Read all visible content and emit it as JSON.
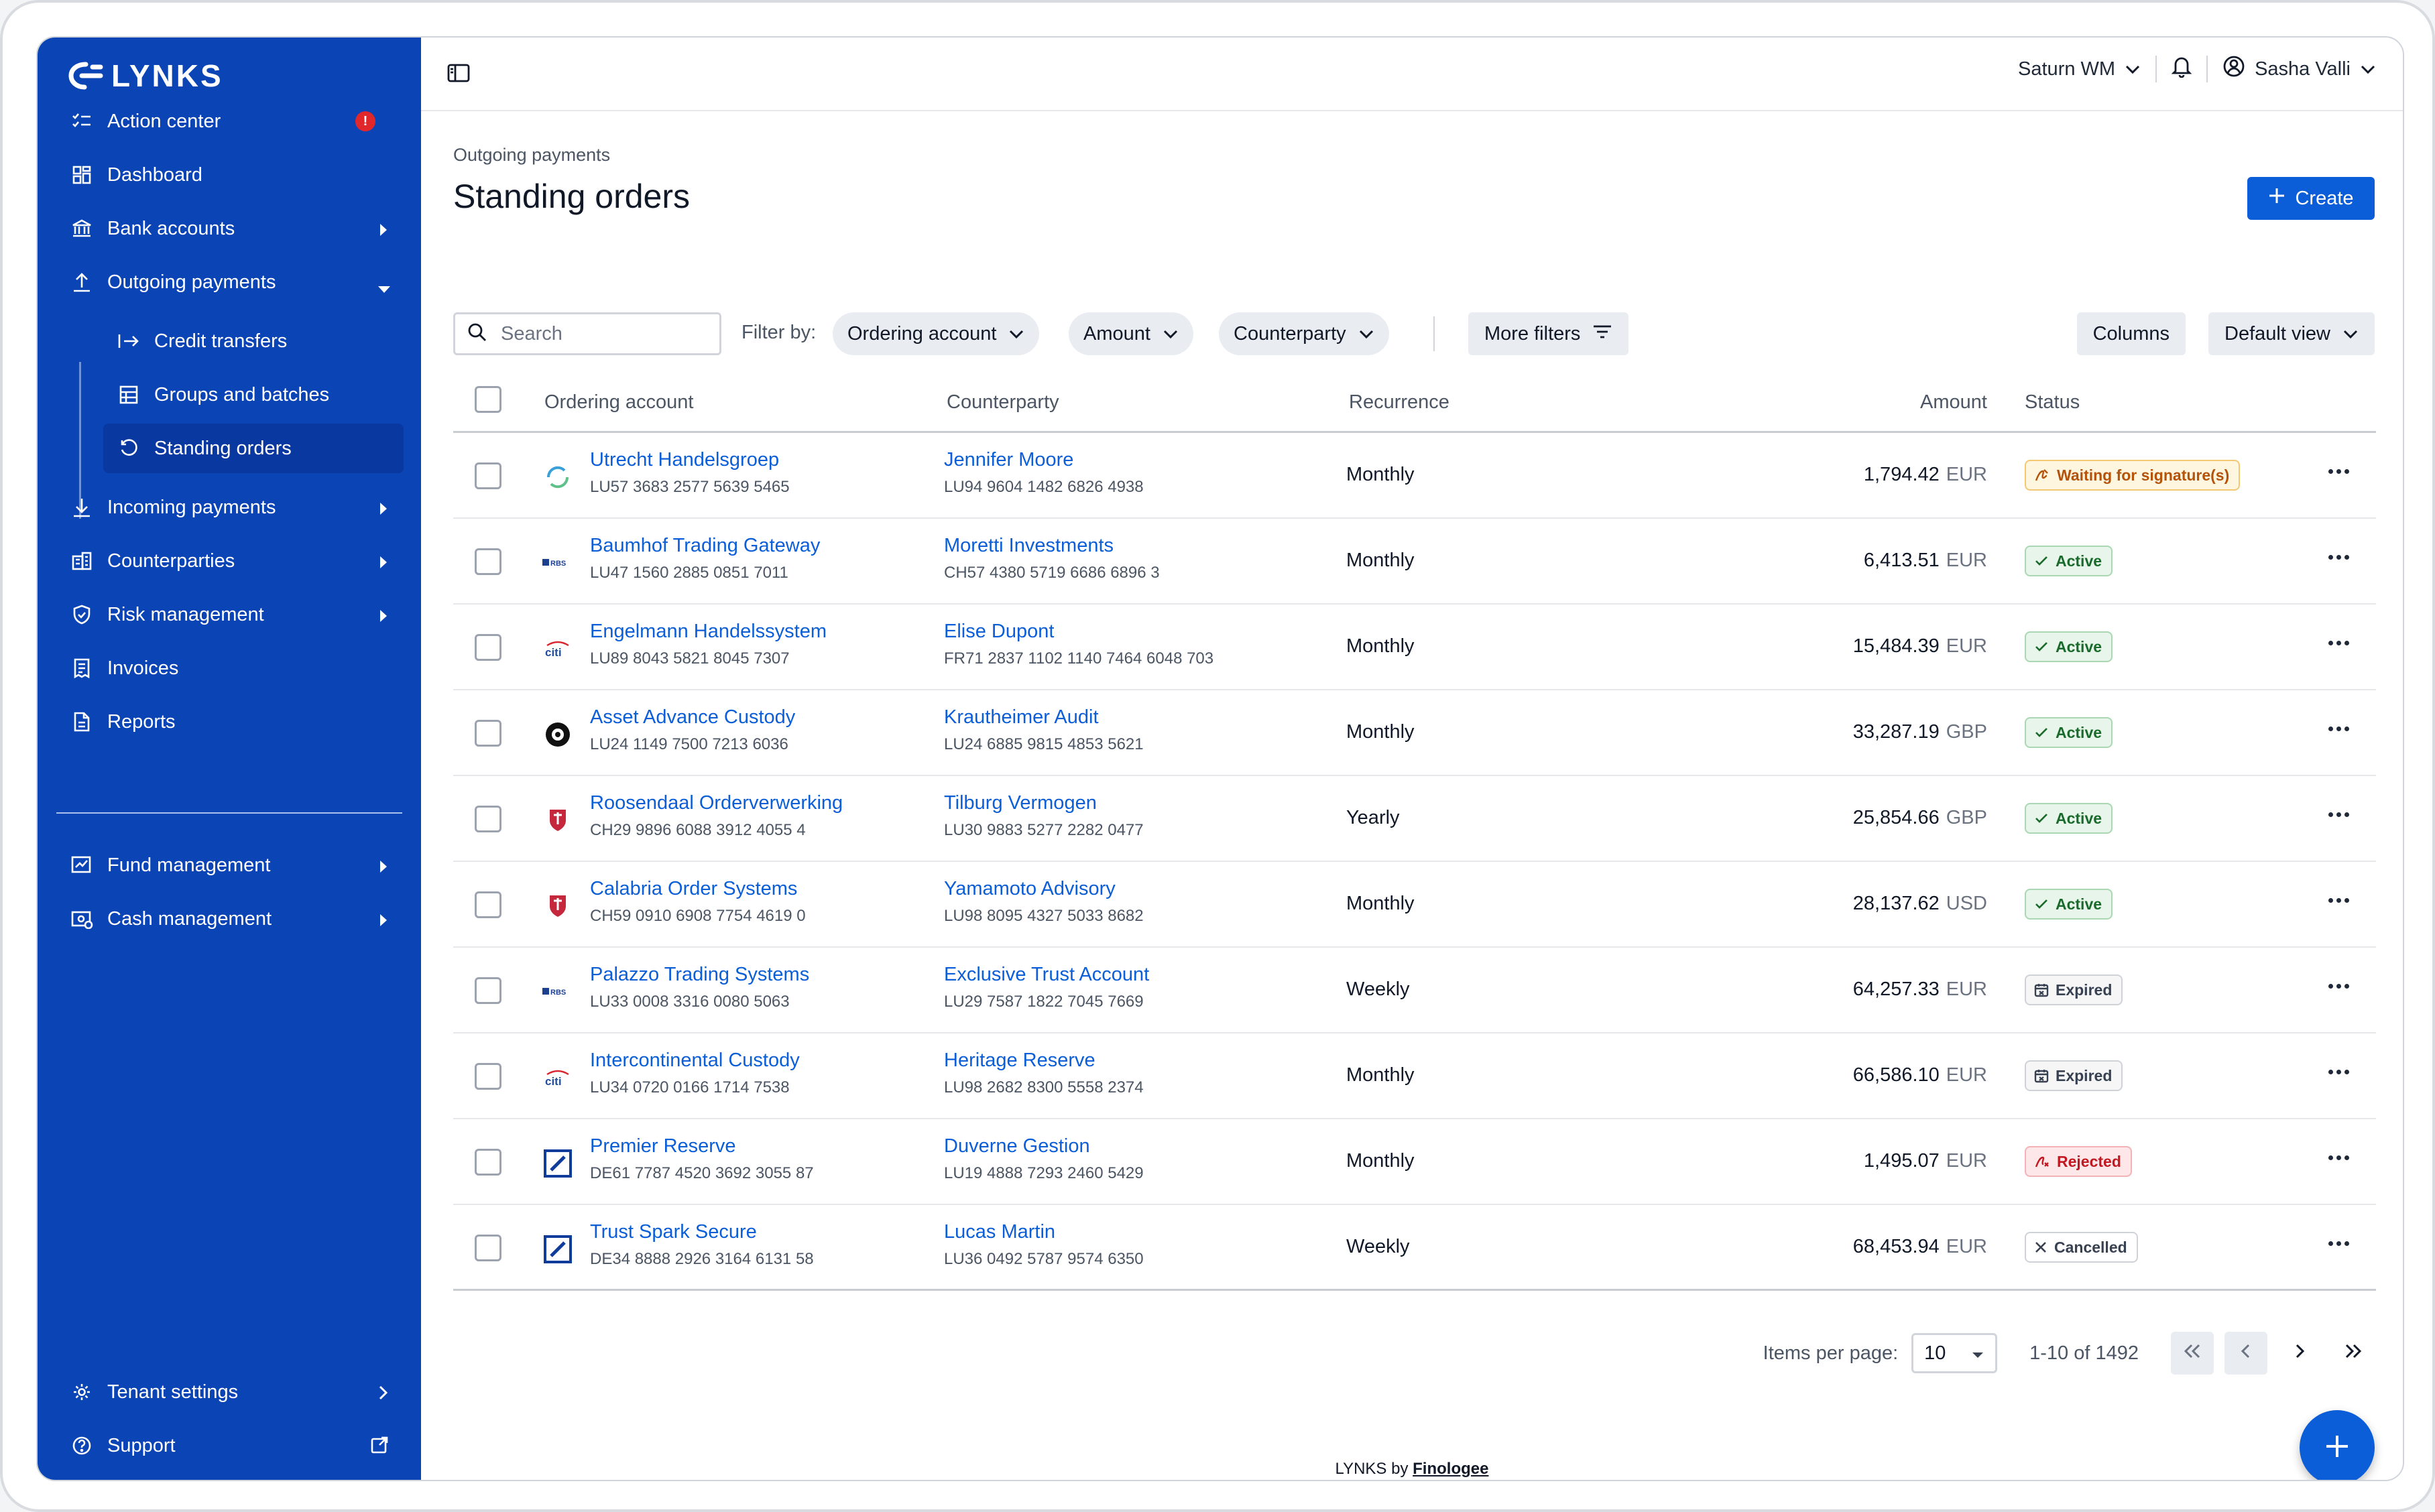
{
  "app": {
    "logo_text": "LYNKS",
    "accent": "#0b44b5",
    "primary": "#0b5ed7"
  },
  "sidebar": {
    "items": [
      {
        "label": "Action center",
        "icon": "checklist-icon",
        "badge": "!"
      },
      {
        "label": "Dashboard",
        "icon": "grid-icon"
      },
      {
        "label": "Bank accounts",
        "icon": "bank-icon"
      },
      {
        "label": "Outgoing payments",
        "icon": "upload-icon"
      },
      {
        "label": "Credit transfers",
        "icon": "arrow-right-bar-icon"
      },
      {
        "label": "Groups and batches",
        "icon": "table-icon"
      },
      {
        "label": "Standing orders",
        "icon": "refresh-icon"
      },
      {
        "label": "Incoming payments",
        "icon": "download-icon"
      },
      {
        "label": "Counterparties",
        "icon": "building-icon"
      },
      {
        "label": "Risk management",
        "icon": "shield-icon"
      },
      {
        "label": "Invoices",
        "icon": "receipt-icon"
      },
      {
        "label": "Reports",
        "icon": "document-icon"
      },
      {
        "label": "Fund management",
        "icon": "fund-icon"
      },
      {
        "label": "Cash management",
        "icon": "cash-icon"
      },
      {
        "label": "Tenant settings",
        "icon": "gear-icon"
      },
      {
        "label": "Support",
        "icon": "help-icon"
      }
    ]
  },
  "topbar": {
    "tenant": "Saturn WM",
    "user": "Sasha Valli"
  },
  "page": {
    "breadcrumb": "Outgoing payments",
    "title": "Standing orders",
    "create_label": "Create"
  },
  "toolbar": {
    "search_placeholder": "Search",
    "filter_by": "Filter by:",
    "filters": [
      "Ordering account",
      "Amount",
      "Counterparty"
    ],
    "more_filters": "More filters",
    "columns": "Columns",
    "view": "Default view"
  },
  "table": {
    "headers": {
      "account": "Ordering account",
      "counterparty": "Counterparty",
      "recurrence": "Recurrence",
      "amount": "Amount",
      "status": "Status"
    },
    "rows": [
      {
        "bank": "cycle",
        "account": "Utrecht Handelsgroep",
        "account_iban": "LU57 3683 2577 5639 5465",
        "cp": "Jennifer Moore",
        "cp_iban": "LU94 9604 1482 6826 4938",
        "recurrence": "Monthly",
        "amount": "1,794.42",
        "currency": "EUR",
        "status": "Waiting for signature(s)",
        "status_type": "wait"
      },
      {
        "bank": "rbs",
        "account": "Baumhof Trading Gateway",
        "account_iban": "LU47 1560 2885 0851 7011",
        "cp": "Moretti Investments",
        "cp_iban": "CH57 4380 5719 6686 6896 3",
        "recurrence": "Monthly",
        "amount": "6,413.51",
        "currency": "EUR",
        "status": "Active",
        "status_type": "active"
      },
      {
        "bank": "citi",
        "account": "Engelmann Handelssystem",
        "account_iban": "LU89 8043 5821 8045 7307",
        "cp": "Elise Dupont",
        "cp_iban": "FR71 2837 1102 1140 7464 6048 703",
        "recurrence": "Monthly",
        "amount": "15,484.39",
        "currency": "EUR",
        "status": "Active",
        "status_type": "active"
      },
      {
        "bank": "burst",
        "account": "Asset Advance Custody",
        "account_iban": "LU24 1149 7500 7213 6036",
        "cp": "Krautheimer Audit",
        "cp_iban": "LU24 6885 9815 4853 5621",
        "recurrence": "Monthly",
        "amount": "33,287.19",
        "currency": "GBP",
        "status": "Active",
        "status_type": "active"
      },
      {
        "bank": "crest",
        "account": "Roosendaal Orderverwerking",
        "account_iban": "CH29 9896 6088 3912 4055 4",
        "cp": "Tilburg Vermogen",
        "cp_iban": "LU30 9883 5277 2282 0477",
        "recurrence": "Yearly",
        "amount": "25,854.66",
        "currency": "GBP",
        "status": "Active",
        "status_type": "active"
      },
      {
        "bank": "crest",
        "account": "Calabria Order Systems",
        "account_iban": "CH59 0910 6908 7754 4619 0",
        "cp": "Yamamoto Advisory",
        "cp_iban": "LU98 8095 4327 5033 8682",
        "recurrence": "Monthly",
        "amount": "28,137.62",
        "currency": "USD",
        "status": "Active",
        "status_type": "active"
      },
      {
        "bank": "rbs",
        "account": "Palazzo Trading Systems",
        "account_iban": "LU33 0008 3316 0080 5063",
        "cp": "Exclusive Trust Account",
        "cp_iban": "LU29 7587 1822 7045 7669",
        "recurrence": "Weekly",
        "amount": "64,257.33",
        "currency": "EUR",
        "status": "Expired",
        "status_type": "expired"
      },
      {
        "bank": "citi",
        "account": "Intercontinental Custody",
        "account_iban": "LU34 0720 0166 1714 7538",
        "cp": "Heritage Reserve",
        "cp_iban": "LU98 2682 8300 5558 2374",
        "recurrence": "Monthly",
        "amount": "66,586.10",
        "currency": "EUR",
        "status": "Expired",
        "status_type": "expired"
      },
      {
        "bank": "db",
        "account": "Premier Reserve",
        "account_iban": "DE61 7787 4520 3692 3055 87",
        "cp": "Duverne Gestion",
        "cp_iban": "LU19 4888 7293 2460 5429",
        "recurrence": "Monthly",
        "amount": "1,495.07",
        "currency": "EUR",
        "status": "Rejected",
        "status_type": "rejected"
      },
      {
        "bank": "db",
        "account": "Trust Spark Secure",
        "account_iban": "DE34 8888 2926 3164 6131 58",
        "cp": "Lucas Martin",
        "cp_iban": "LU36 0492 5787 9574 6350",
        "recurrence": "Weekly",
        "amount": "68,453.94",
        "currency": "EUR",
        "status": "Cancelled",
        "status_type": "cancelled"
      }
    ]
  },
  "pagination": {
    "items_per_page_label": "Items per page:",
    "per_page": "10",
    "range": "1-10 of 1492"
  },
  "footer": {
    "prefix": "LYNKS by",
    "brand": "Finologee"
  }
}
